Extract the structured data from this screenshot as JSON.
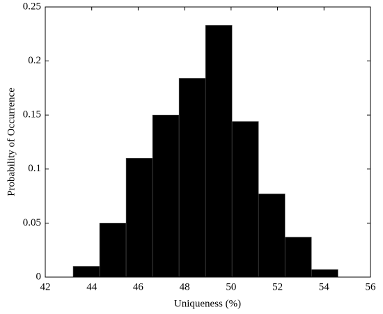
{
  "chart_data": {
    "type": "histogram",
    "xlabel": "Uniqueness (%)",
    "ylabel": "Probability of Occurrence",
    "bins": [
      43.2,
      44.34,
      45.48,
      46.62,
      47.76,
      48.9,
      50.04,
      51.18,
      52.32,
      53.46,
      54.6
    ],
    "values": [
      0.01,
      0.05,
      0.11,
      0.15,
      0.184,
      0.233,
      0.144,
      0.077,
      0.037,
      0.007
    ],
    "color": "#000000",
    "xlim": [
      42,
      56
    ],
    "xticks": [
      42,
      44,
      46,
      48,
      50,
      52,
      54,
      56
    ],
    "ylim": [
      0,
      0.25
    ],
    "yticks": [
      0,
      0.05,
      0.1,
      0.15,
      0.2,
      0.25
    ],
    "grid": false
  }
}
